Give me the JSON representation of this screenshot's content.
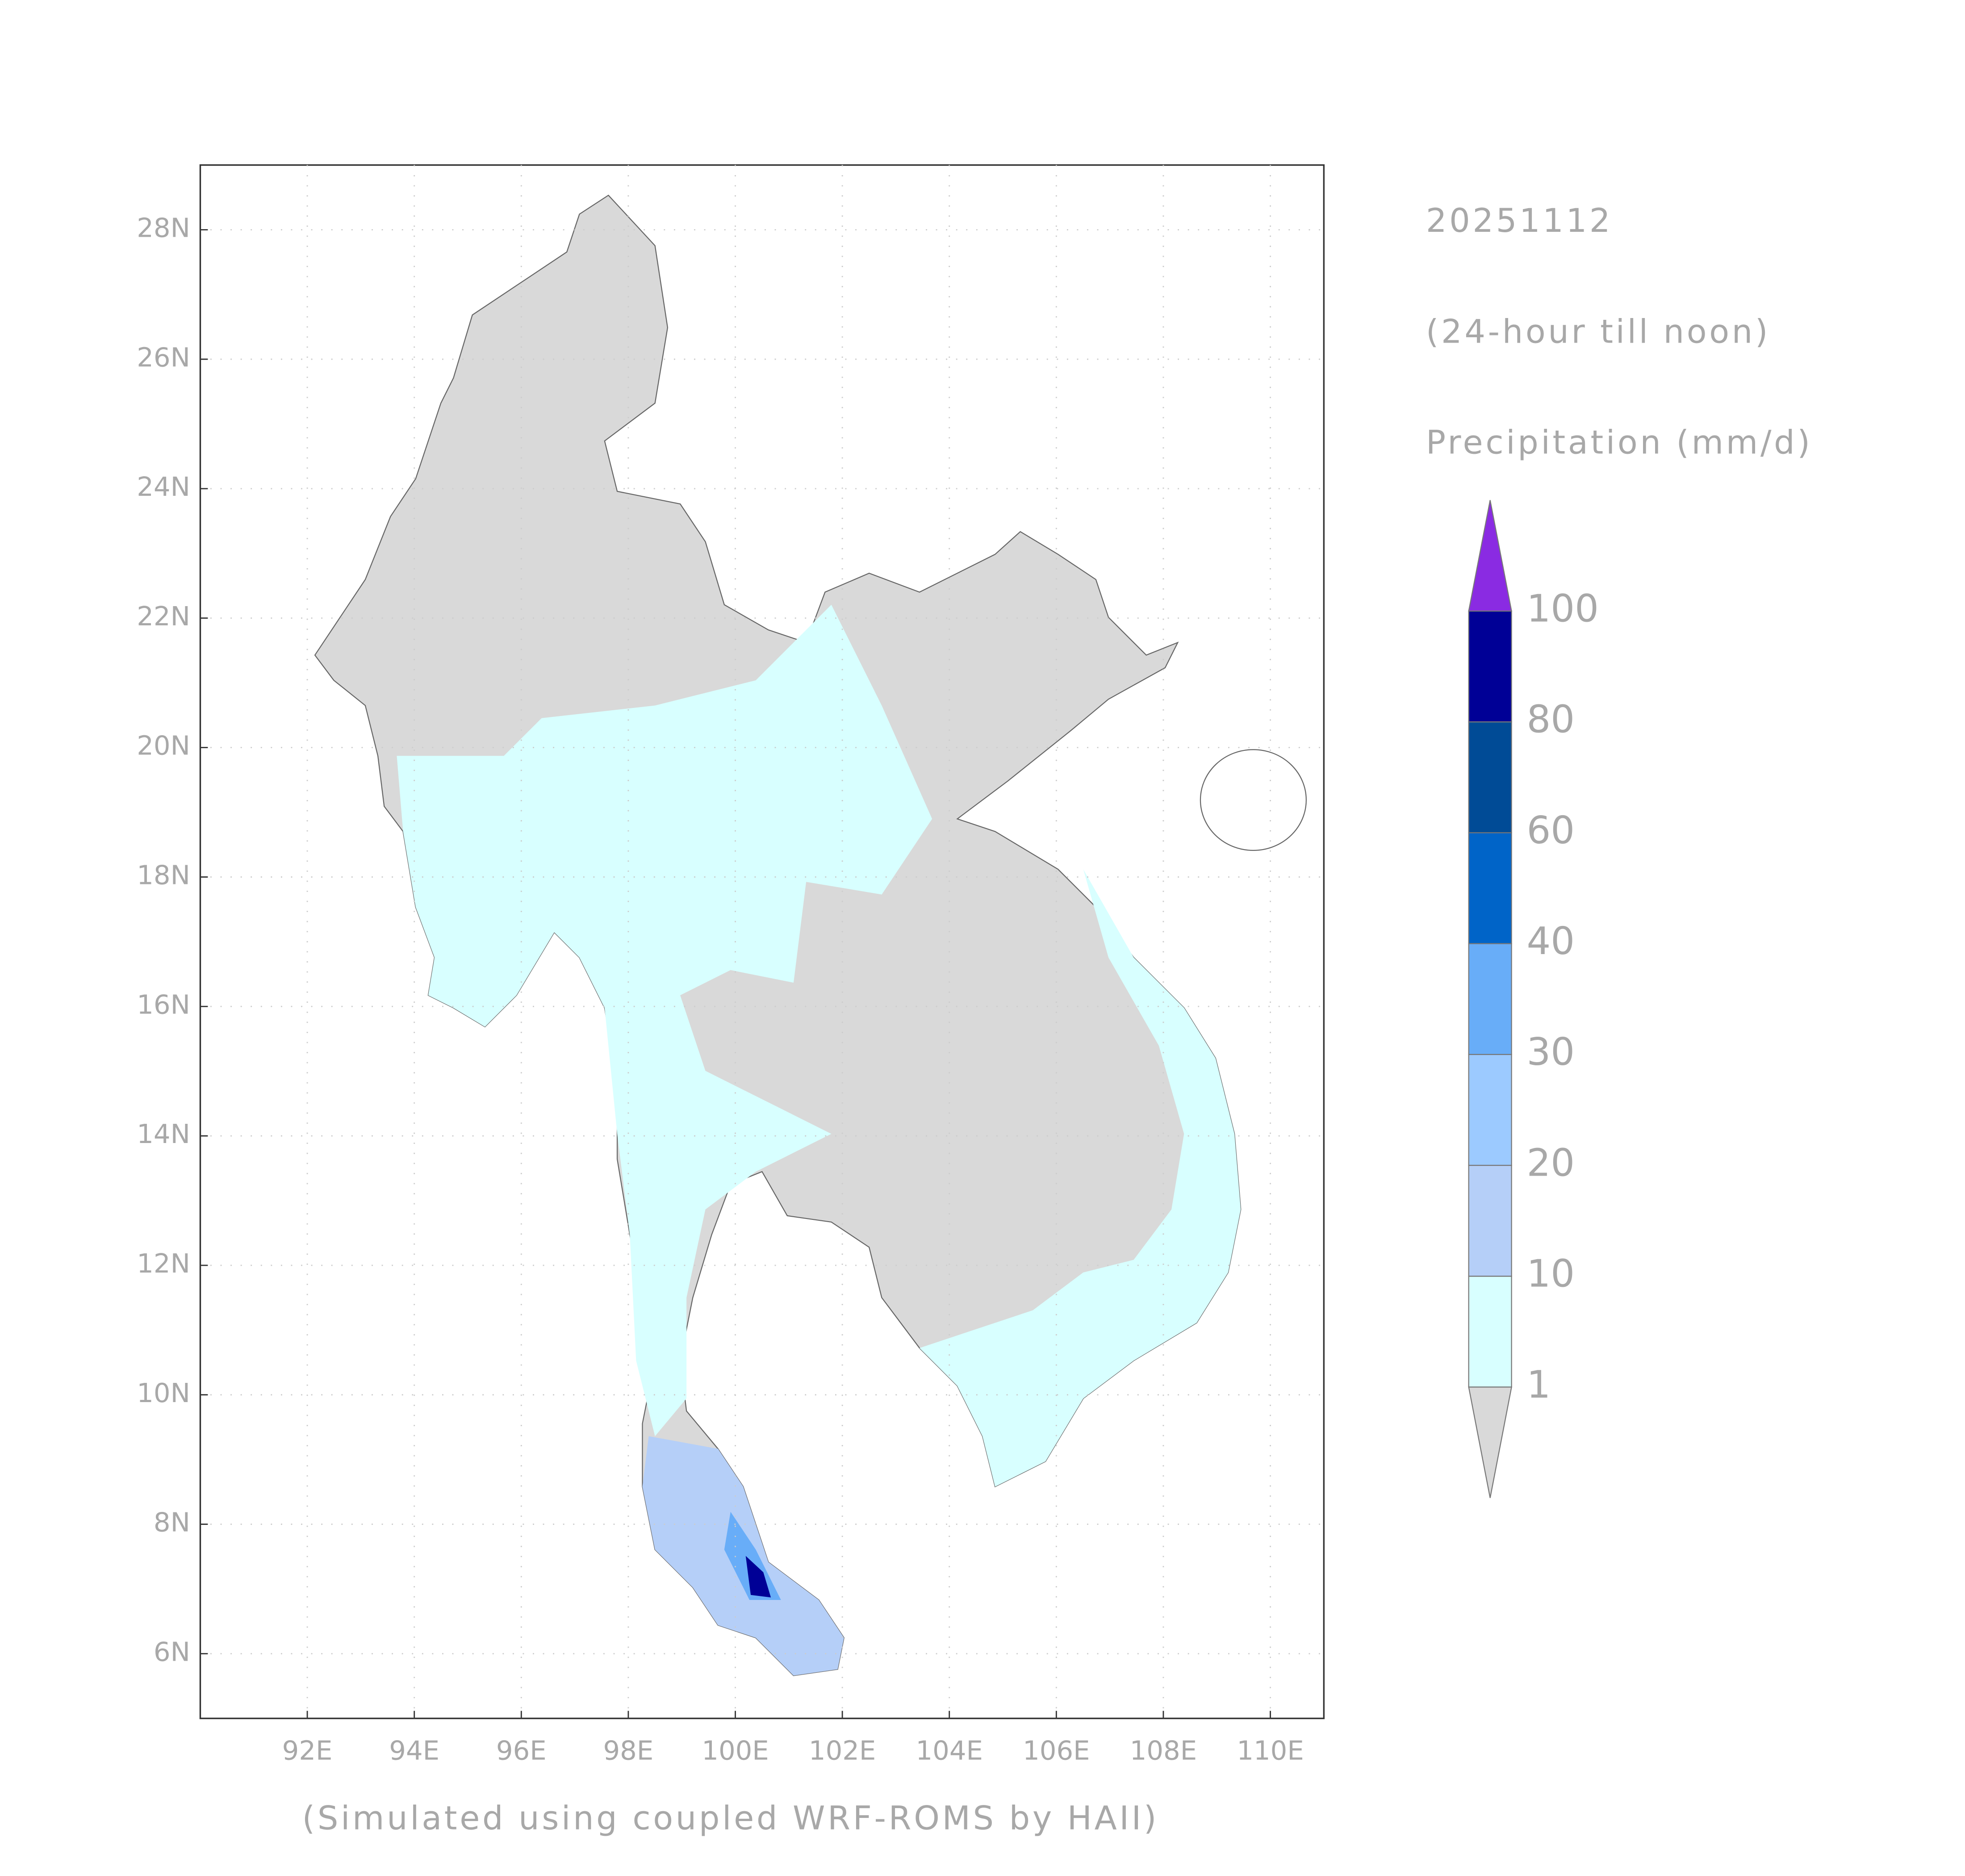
{
  "map": {
    "date": "20251112",
    "period": "(24-hour till noon)",
    "variable": "Precipitation (mm/d)",
    "credit": "(Simulated using coupled WRF-ROMS by HAII)",
    "lonlim": [
      90,
      111
    ],
    "latlim": [
      5,
      29
    ],
    "lon_ticks": [
      {
        "value": 92,
        "label": "92E"
      },
      {
        "value": 94,
        "label": "94E"
      },
      {
        "value": 96,
        "label": "96E"
      },
      {
        "value": 98,
        "label": "98E"
      },
      {
        "value": 100,
        "label": "100E"
      },
      {
        "value": 102,
        "label": "102E"
      },
      {
        "value": 104,
        "label": "104E"
      },
      {
        "value": 106,
        "label": "106E"
      },
      {
        "value": 108,
        "label": "108E"
      },
      {
        "value": 110,
        "label": "110E"
      }
    ],
    "lat_ticks": [
      {
        "value": 6,
        "label": "6N"
      },
      {
        "value": 8,
        "label": "8N"
      },
      {
        "value": 10,
        "label": "10N"
      },
      {
        "value": 12,
        "label": "12N"
      },
      {
        "value": 14,
        "label": "14N"
      },
      {
        "value": 16,
        "label": "16N"
      },
      {
        "value": 18,
        "label": "18N"
      },
      {
        "value": 20,
        "label": "20N"
      },
      {
        "value": 22,
        "label": "22N"
      },
      {
        "value": 24,
        "label": "24N"
      },
      {
        "value": 26,
        "label": "26N"
      },
      {
        "value": 28,
        "label": "28N"
      }
    ],
    "grid": true,
    "colorbar": {
      "levels": [
        1,
        10,
        20,
        30,
        40,
        60,
        80,
        100
      ],
      "colors": [
        "#d9d9d9",
        "#d8ffff",
        "#b5cff8",
        "#9ccaff",
        "#68adf8",
        "#0064c8",
        "#004b96",
        "#000096",
        "#8a2be2"
      ]
    }
  }
}
